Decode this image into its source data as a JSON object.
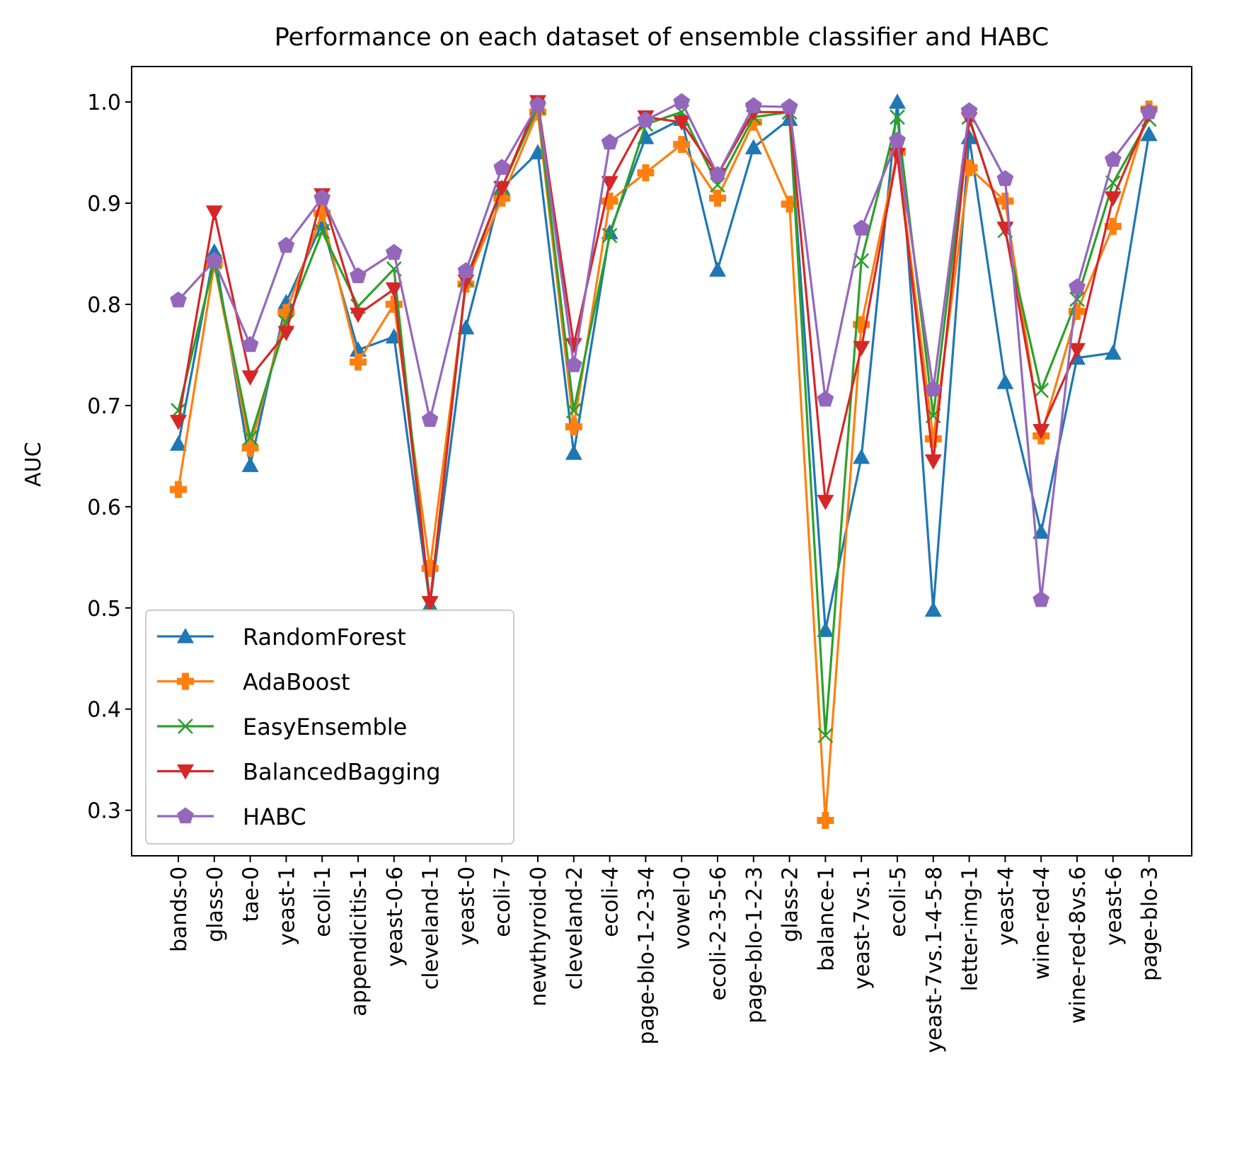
{
  "chart_data": {
    "type": "line",
    "title": "Performance on each dataset of ensemble classifier and HABC",
    "xlabel": "",
    "ylabel": "AUC",
    "ylim": [
      0.255,
      1.035
    ],
    "yticks": [
      0.3,
      0.4,
      0.5,
      0.6,
      0.7,
      0.8,
      0.9,
      1.0
    ],
    "ytick_labels": [
      "0.3",
      "0.4",
      "0.5",
      "0.6",
      "0.7",
      "0.8",
      "0.9",
      "1.0"
    ],
    "grid": false,
    "legend_position": "lower-left",
    "categories": [
      "bands-0",
      "glass-0",
      "tae-0",
      "yeast-1",
      "ecoli-1",
      "appendicitis-1",
      "yeast-0-6",
      "cleveland-1",
      "yeast-0",
      "ecoli-7",
      "newthyroid-0",
      "cleveland-2",
      "ecoli-4",
      "page-blo-1-2-3-4",
      "vowel-0",
      "ecoli-2-3-5-6",
      "page-blo-1-2-3",
      "glass-2",
      "balance-1",
      "yeast-7vs.1",
      "ecoli-5",
      "yeast-7vs.1-4-5-8",
      "letter-img-1",
      "yeast-4",
      "wine-red-4",
      "wine-red-8vs.6",
      "yeast-6",
      "page-blo-3"
    ],
    "series": [
      {
        "name": "RandomForest",
        "color": "#1f77b4",
        "marker": "triangle-up",
        "values": [
          0.662,
          0.852,
          0.641,
          0.802,
          0.88,
          0.755,
          0.768,
          0.503,
          0.777,
          0.915,
          0.95,
          0.653,
          0.871,
          0.965,
          0.983,
          0.834,
          0.955,
          0.983,
          0.478,
          0.649,
          1.0,
          0.498,
          0.965,
          0.723,
          0.575,
          0.747,
          0.752,
          0.968
        ]
      },
      {
        "name": "AdaBoost",
        "color": "#ff7f0e",
        "marker": "plus-filled",
        "values": [
          0.617,
          0.84,
          0.658,
          0.792,
          0.89,
          0.743,
          0.8,
          0.539,
          0.82,
          0.905,
          0.99,
          0.679,
          0.902,
          0.93,
          0.958,
          0.905,
          0.98,
          0.899,
          0.29,
          0.78,
          0.95,
          0.667,
          0.935,
          0.902,
          0.67,
          0.793,
          0.877,
          0.993
        ]
      },
      {
        "name": "EasyEnsemble",
        "color": "#2ca02c",
        "marker": "x",
        "values": [
          0.695,
          0.842,
          0.668,
          0.782,
          0.872,
          0.798,
          0.835,
          0.503,
          0.825,
          0.915,
          0.995,
          0.695,
          0.868,
          0.978,
          0.99,
          0.918,
          0.985,
          0.99,
          0.374,
          0.843,
          0.985,
          0.69,
          0.985,
          0.873,
          0.715,
          0.805,
          0.92,
          0.983
        ]
      },
      {
        "name": "BalancedBagging",
        "color": "#d62728",
        "marker": "triangle-down",
        "values": [
          0.684,
          0.891,
          0.728,
          0.772,
          0.908,
          0.79,
          0.815,
          0.505,
          0.823,
          0.915,
          1.0,
          0.76,
          0.92,
          0.985,
          0.98,
          0.928,
          0.99,
          0.99,
          0.605,
          0.757,
          0.948,
          0.645,
          0.983,
          0.875,
          0.675,
          0.755,
          0.905,
          0.988
        ]
      },
      {
        "name": "HABC",
        "color": "#9467bd",
        "marker": "pentagon",
        "values": [
          0.804,
          0.843,
          0.76,
          0.858,
          0.905,
          0.828,
          0.851,
          0.686,
          0.833,
          0.935,
          0.997,
          0.74,
          0.96,
          0.982,
          1.0,
          0.928,
          0.996,
          0.995,
          0.706,
          0.875,
          0.962,
          0.716,
          0.991,
          0.924,
          0.508,
          0.817,
          0.943,
          0.99
        ]
      }
    ]
  }
}
